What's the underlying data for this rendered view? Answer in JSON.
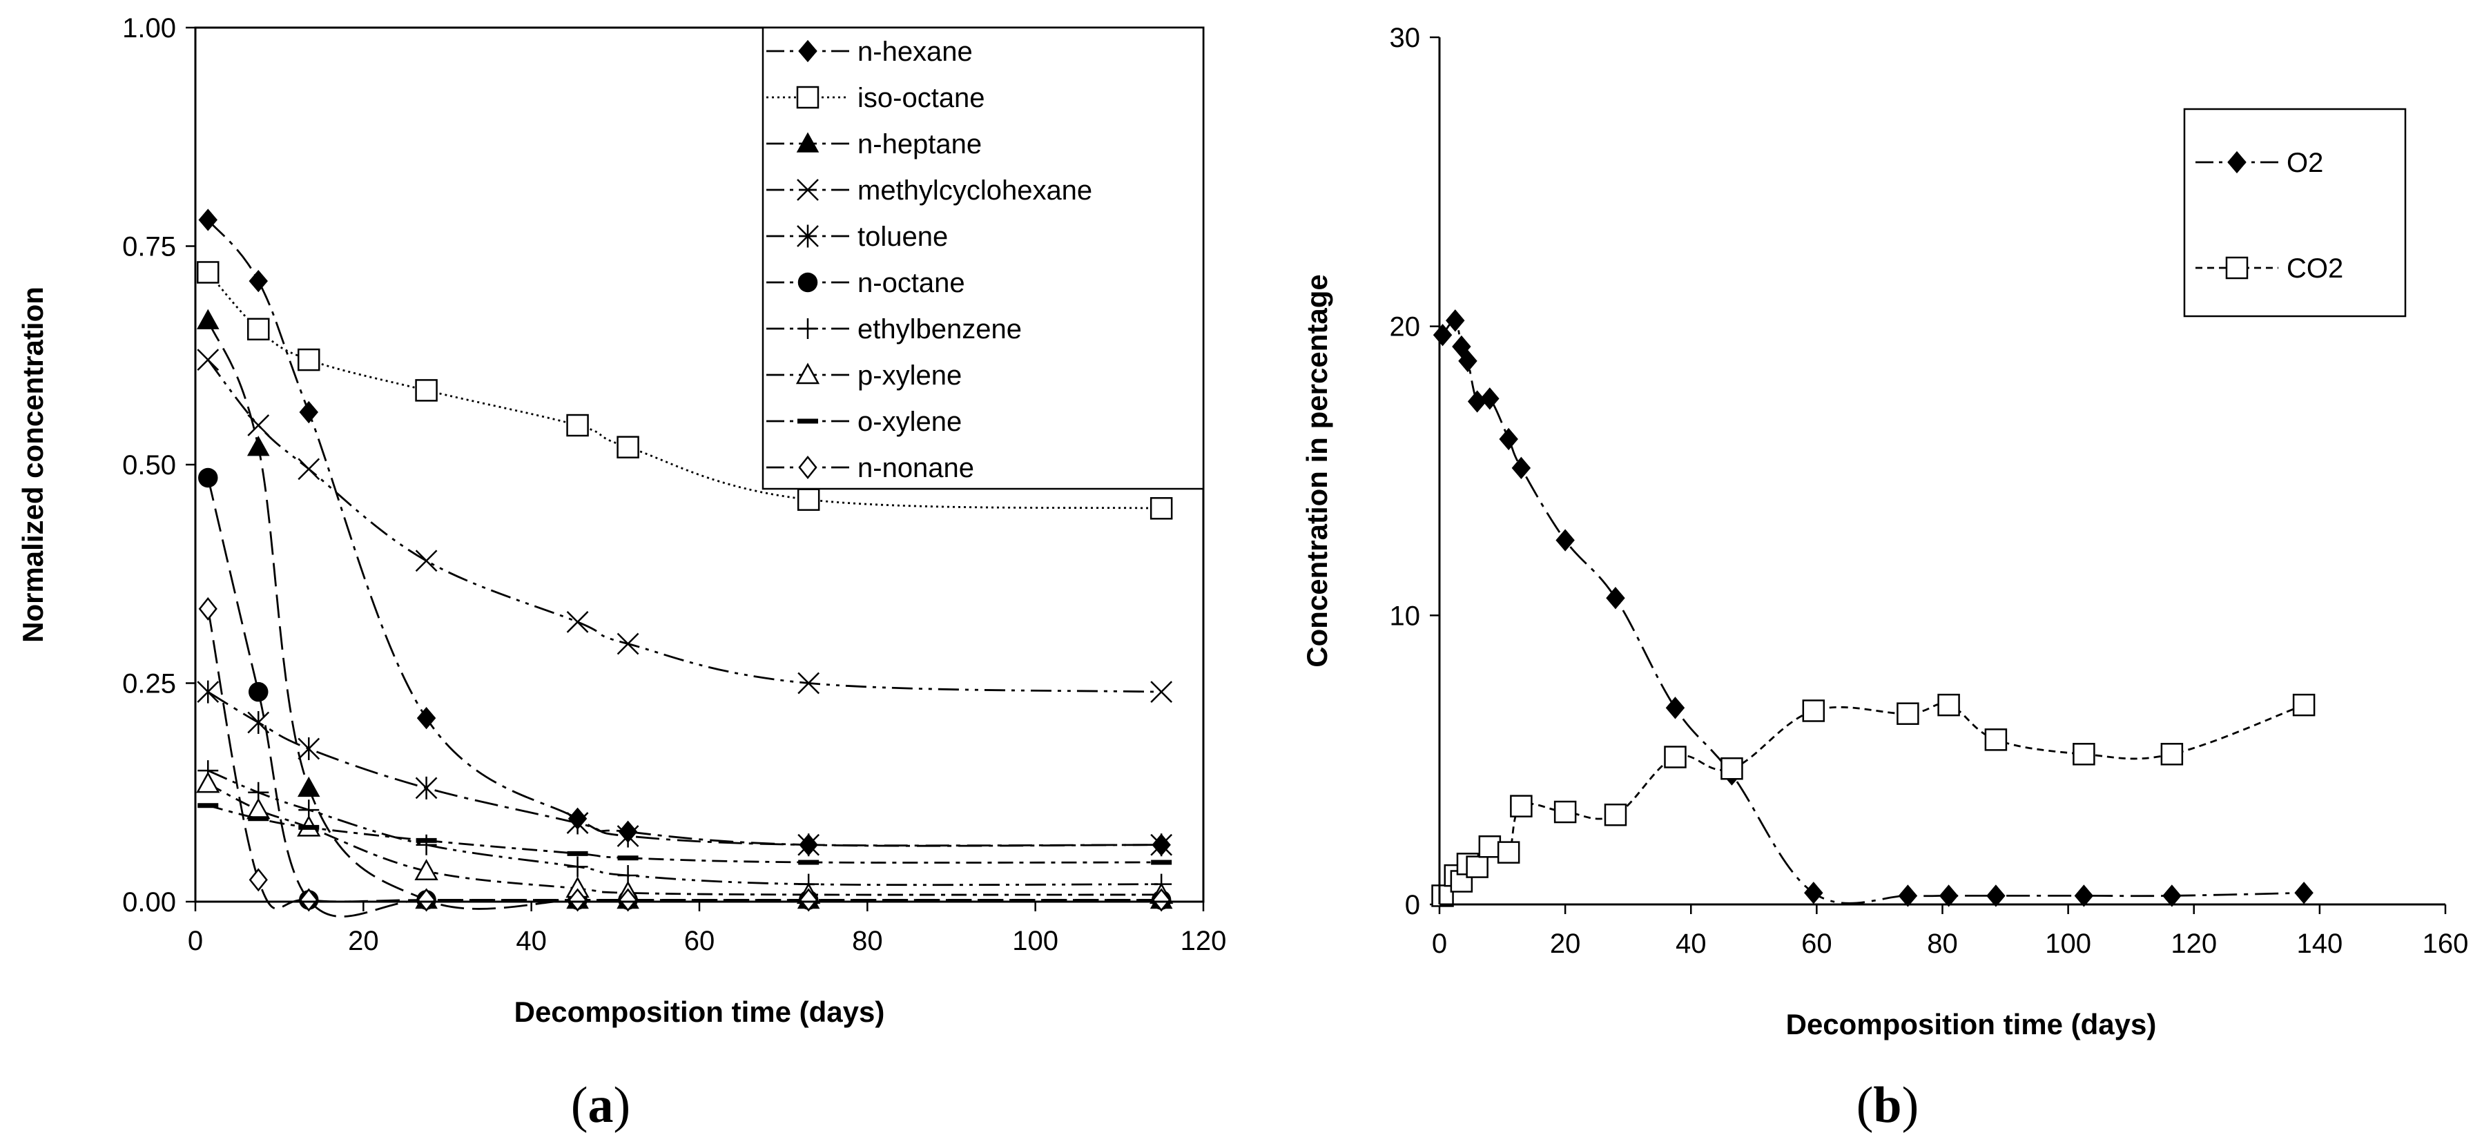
{
  "chart_data": [
    {
      "type": "line",
      "panel_label": "(a)",
      "panel_letter": "a",
      "xlabel": "Decomposition time (days)",
      "ylabel": "Normalized concentration",
      "xlim": [
        0,
        120
      ],
      "ylim": [
        0,
        1
      ],
      "xticks": [
        "0",
        "20",
        "40",
        "60",
        "80",
        "100",
        "120"
      ],
      "yticks": [
        "0.00",
        "0.25",
        "0.50",
        "0.75",
        "1.00"
      ],
      "xtick_values": [
        0,
        20,
        40,
        60,
        80,
        100,
        120
      ],
      "ytick_values": [
        0,
        0.25,
        0.5,
        0.75,
        1.0
      ],
      "legend_position": "top-right",
      "series": [
        {
          "name": "n-hexane",
          "marker": "diamond-filled",
          "dash": "long-dash-dot",
          "x": [
            1.5,
            7.5,
            13.5,
            27.5,
            45.5,
            51.5,
            73,
            115
          ],
          "y": [
            0.78,
            0.71,
            0.56,
            0.21,
            0.095,
            0.08,
            0.065,
            0.065
          ]
        },
        {
          "name": "iso-octane",
          "marker": "square-open",
          "dash": "dotted",
          "x": [
            1.5,
            7.5,
            13.5,
            27.5,
            45.5,
            51.5,
            73,
            115
          ],
          "y": [
            0.72,
            0.655,
            0.62,
            0.585,
            0.545,
            0.52,
            0.46,
            0.45
          ]
        },
        {
          "name": "n-heptane",
          "marker": "triangle-filled",
          "dash": "long-dash",
          "x": [
            1.5,
            7.5,
            13.5,
            27.5,
            45.5,
            51.5,
            73,
            115
          ],
          "y": [
            0.665,
            0.52,
            0.13,
            0.002,
            0.002,
            0.002,
            0.002,
            0.002
          ]
        },
        {
          "name": "methylcyclohexane",
          "marker": "x",
          "dash": "dash-dot-dot",
          "x": [
            1.5,
            7.5,
            13.5,
            27.5,
            45.5,
            51.5,
            73,
            115
          ],
          "y": [
            0.62,
            0.545,
            0.495,
            0.39,
            0.32,
            0.295,
            0.25,
            0.24
          ]
        },
        {
          "name": "toluene",
          "marker": "asterisk",
          "dash": "long-dash-dot",
          "x": [
            1.5,
            7.5,
            13.5,
            27.5,
            45.5,
            51.5,
            73,
            115
          ],
          "y": [
            0.24,
            0.205,
            0.175,
            0.13,
            0.09,
            0.075,
            0.065,
            0.065
          ]
        },
        {
          "name": "n-octane",
          "marker": "circle-filled",
          "dash": "long-dash",
          "x": [
            1.5,
            7.5,
            13.5,
            27.5,
            45.5,
            51.5,
            73,
            115
          ],
          "y": [
            0.485,
            0.24,
            0.002,
            0.002,
            0.002,
            0.002,
            0.002,
            0.002
          ]
        },
        {
          "name": "ethylbenzene",
          "marker": "plus",
          "dash": "dash-dot-dot",
          "x": [
            1.5,
            7.5,
            13.5,
            27.5,
            45.5,
            51.5,
            73,
            115
          ],
          "y": [
            0.15,
            0.125,
            0.105,
            0.065,
            0.04,
            0.03,
            0.02,
            0.02
          ]
        },
        {
          "name": "p-xylene",
          "marker": "triangle-open",
          "dash": "dash-dot",
          "x": [
            1.5,
            7.5,
            13.5,
            27.5,
            45.5,
            51.5,
            73,
            115
          ],
          "y": [
            0.135,
            0.105,
            0.085,
            0.035,
            0.015,
            0.01,
            0.008,
            0.008
          ]
        },
        {
          "name": "o-xylene",
          "marker": "dash-bar",
          "dash": "dash-dot",
          "x": [
            1.5,
            7.5,
            13.5,
            27.5,
            45.5,
            51.5,
            73,
            115
          ],
          "y": [
            0.11,
            0.095,
            0.085,
            0.07,
            0.055,
            0.05,
            0.045,
            0.045
          ]
        },
        {
          "name": "n-nonane",
          "marker": "diamond-open",
          "dash": "long-dash",
          "x": [
            1.5,
            7.5,
            13.5,
            27.5,
            45.5,
            51.5,
            73,
            115
          ],
          "y": [
            0.335,
            0.025,
            0.002,
            0.002,
            0.002,
            0.002,
            0.002,
            0.002
          ]
        }
      ]
    },
    {
      "type": "line",
      "panel_label": "(b)",
      "panel_letter": "b",
      "xlabel": "Decomposition time (days)",
      "ylabel": "Concentration in percentage",
      "xlim": [
        0,
        160
      ],
      "ylim": [
        0,
        30
      ],
      "xticks": [
        "0",
        "20",
        "40",
        "60",
        "80",
        "100",
        "120",
        "140",
        "160"
      ],
      "yticks": [
        "0",
        "10",
        "20",
        "30"
      ],
      "xtick_values": [
        0,
        20,
        40,
        60,
        80,
        100,
        120,
        140,
        160
      ],
      "ytick_values": [
        0,
        10,
        20,
        30
      ],
      "legend_position": "top-right",
      "series": [
        {
          "name": "O2",
          "marker": "diamond-filled",
          "dash": "long-dash-dot",
          "x": [
            0.5,
            2.5,
            3.5,
            4.5,
            6,
            8,
            11,
            13,
            20,
            28,
            37.5,
            46.5,
            59.5,
            74.5,
            81,
            88.5,
            102.5,
            116.5,
            137.5
          ],
          "y": [
            19.7,
            20.2,
            19.3,
            18.8,
            17.4,
            17.5,
            16.1,
            15.1,
            12.6,
            10.6,
            6.8,
            4.5,
            0.4,
            0.3,
            0.3,
            0.3,
            0.3,
            0.3,
            0.4
          ]
        },
        {
          "name": "CO2",
          "marker": "square-open",
          "dash": "short-dash",
          "x": [
            0.5,
            2.5,
            3.5,
            4.5,
            6,
            8,
            11,
            13,
            20,
            28,
            37.5,
            46.5,
            59.5,
            74.5,
            81,
            88.5,
            102.5,
            116.5,
            137.5
          ],
          "y": [
            0.3,
            1.0,
            0.8,
            1.4,
            1.3,
            2.0,
            1.8,
            3.4,
            3.2,
            3.1,
            5.1,
            4.7,
            6.7,
            6.6,
            6.9,
            5.7,
            5.2,
            5.2,
            6.9
          ]
        }
      ]
    }
  ]
}
